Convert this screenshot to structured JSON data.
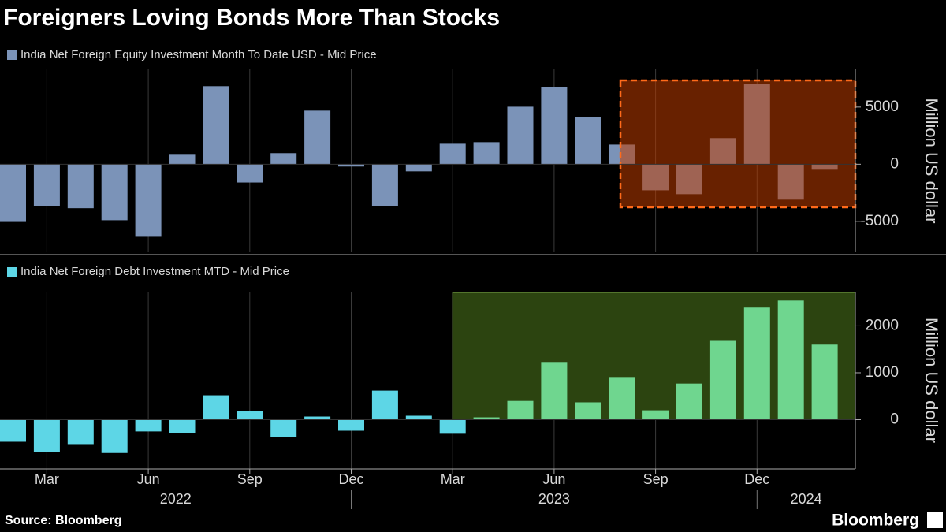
{
  "title": "Foreigners Loving Bonds More Than Stocks",
  "source": "Source: Bloomberg",
  "brand": "Bloomberg",
  "chart_data": [
    {
      "type": "bar",
      "series": [
        {
          "name": "India Net Foreign Equity Investment Month To Date USD - Mid Price",
          "color": "#7b93b8",
          "values": [
            -5050,
            -3650,
            -3850,
            -4900,
            -6350,
            830,
            6830,
            -1600,
            970,
            4690,
            -200,
            -3650,
            -620,
            1790,
            1930,
            5030,
            6760,
            4140,
            1720,
            -2280,
            -2620,
            2280,
            7030,
            -3100,
            -480
          ]
        }
      ],
      "ylabel": "Million US dollar",
      "ylim": [
        -7700,
        8300
      ],
      "yticks": [
        -5000,
        0,
        5000
      ]
    },
    {
      "type": "bar",
      "categories": [
        null,
        "Mar",
        null,
        null,
        "Jun",
        null,
        null,
        "Sep",
        null,
        null,
        "Dec",
        null,
        null,
        "Mar",
        null,
        null,
        "Jun",
        null,
        null,
        "Sep",
        null,
        null,
        "Dec",
        null,
        null
      ],
      "years": [
        "2022",
        "2023",
        "2024"
      ],
      "series": [
        {
          "name": "India Net Foreign Debt Investment MTD - Mid Price",
          "color": "#5dd6e6",
          "values": [
            -470,
            -690,
            -520,
            -710,
            -250,
            -290,
            520,
            185,
            -370,
            67,
            -235,
            620,
            84,
            -300,
            50,
            400,
            1230,
            370,
            910,
            200,
            770,
            1680,
            2390,
            2540,
            1600
          ]
        }
      ],
      "ylabel": "Million US dollar",
      "ylim": [
        -1050,
        2730
      ],
      "yticks": [
        0,
        1000,
        2000
      ]
    }
  ]
}
